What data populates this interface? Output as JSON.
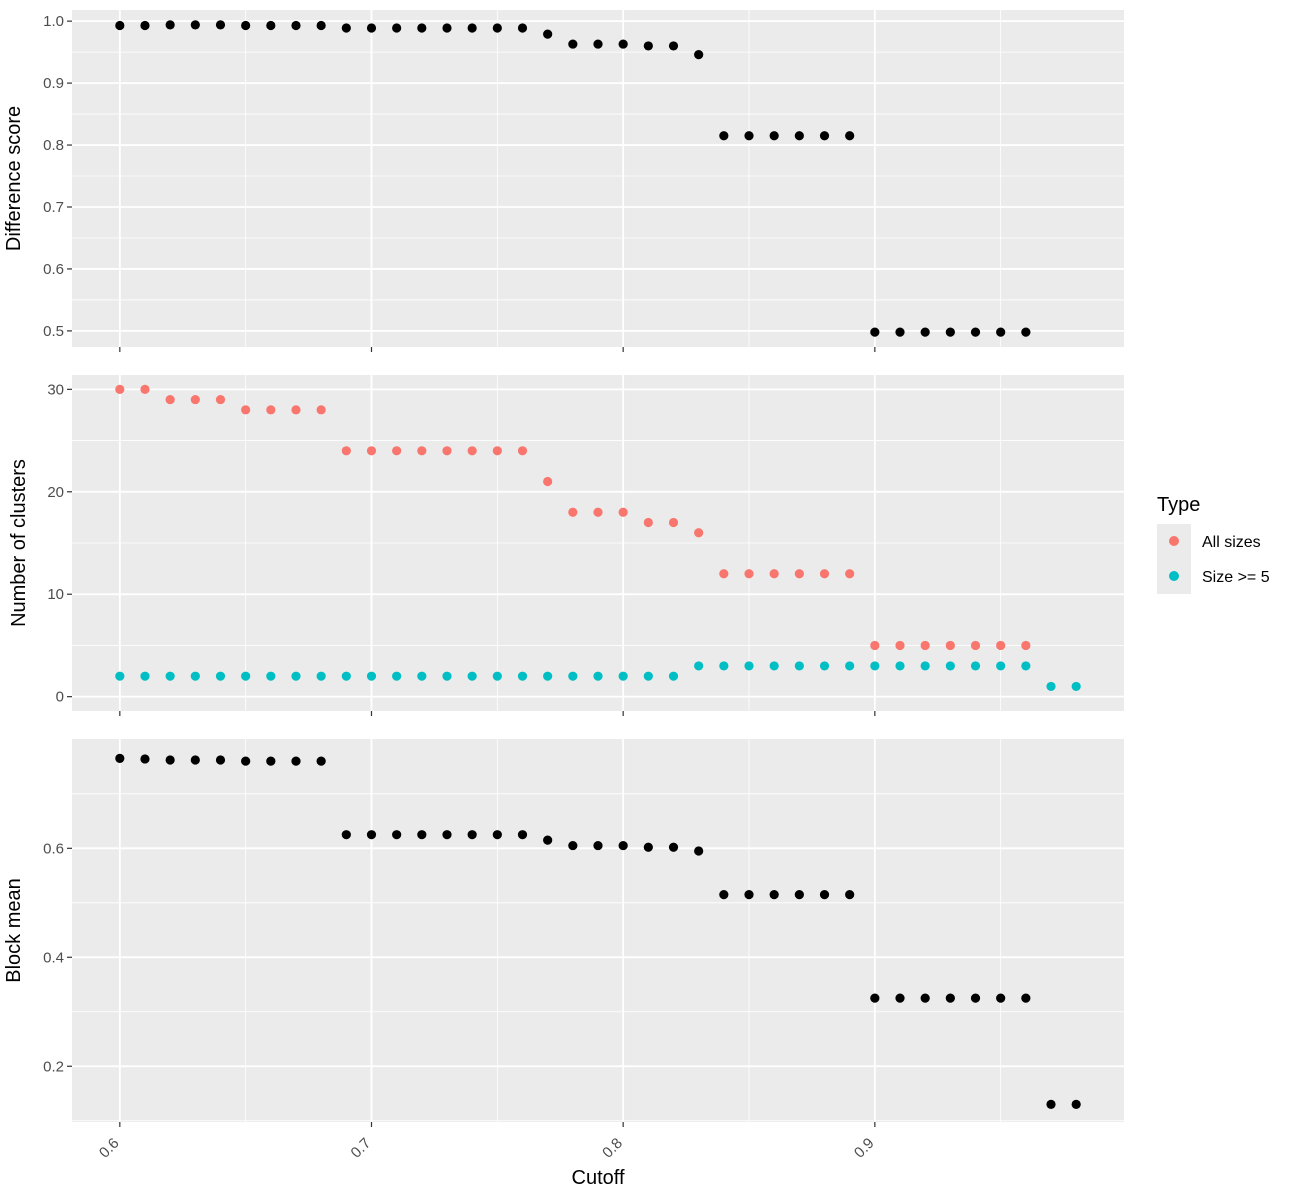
{
  "chart_data": {
    "type": "scatter",
    "xlabel": "Cutoff",
    "x_ticks": [
      0.6,
      0.7,
      0.8,
      0.9
    ],
    "x_tick_labels": [
      "0.6",
      "0.7",
      "0.8",
      "0.9"
    ],
    "xlim": [
      0.581,
      0.999
    ],
    "grid": true,
    "legend": {
      "title": "Type",
      "placement": "right",
      "entries": [
        {
          "name": "All sizes",
          "color": "#F8766D"
        },
        {
          "name": "Size >= 5",
          "color": "#00BFC4"
        }
      ]
    },
    "panels": [
      {
        "ylabel": "Difference score",
        "ylim": [
          0.474,
          1.018
        ],
        "y_ticks": [
          0.5,
          0.6,
          0.7,
          0.8,
          0.9,
          1.0
        ],
        "y_tick_labels": [
          "0.5",
          "0.6",
          "0.7",
          "0.8",
          "0.9",
          "1.0"
        ],
        "series": [
          {
            "color": "#000000",
            "x": [
              0.6,
              0.61,
              0.62,
              0.63,
              0.64,
              0.65,
              0.66,
              0.67,
              0.68,
              0.69,
              0.7,
              0.71,
              0.72,
              0.73,
              0.74,
              0.75,
              0.76,
              0.77,
              0.78,
              0.79,
              0.8,
              0.81,
              0.82,
              0.83,
              0.84,
              0.85,
              0.86,
              0.87,
              0.88,
              0.89,
              0.9,
              0.91,
              0.92,
              0.93,
              0.94,
              0.95,
              0.96
            ],
            "y": [
              0.993,
              0.993,
              0.994,
              0.994,
              0.994,
              0.993,
              0.993,
              0.993,
              0.993,
              0.989,
              0.989,
              0.989,
              0.989,
              0.989,
              0.989,
              0.989,
              0.989,
              0.979,
              0.963,
              0.963,
              0.963,
              0.96,
              0.96,
              0.946,
              0.815,
              0.815,
              0.815,
              0.815,
              0.815,
              0.815,
              0.498,
              0.498,
              0.498,
              0.498,
              0.498,
              0.498,
              0.498
            ]
          }
        ]
      },
      {
        "ylabel": "Number of clusters",
        "ylim": [
          -1.4,
          31.4
        ],
        "y_ticks": [
          0,
          10,
          20,
          30
        ],
        "y_tick_labels": [
          "0",
          "10",
          "20",
          "30"
        ],
        "series": [
          {
            "name": "All sizes",
            "color": "#F8766D",
            "x": [
              0.6,
              0.61,
              0.62,
              0.63,
              0.64,
              0.65,
              0.66,
              0.67,
              0.68,
              0.69,
              0.7,
              0.71,
              0.72,
              0.73,
              0.74,
              0.75,
              0.76,
              0.77,
              0.78,
              0.79,
              0.8,
              0.81,
              0.82,
              0.83,
              0.84,
              0.85,
              0.86,
              0.87,
              0.88,
              0.89,
              0.9,
              0.91,
              0.92,
              0.93,
              0.94,
              0.95,
              0.96
            ],
            "y": [
              30,
              30,
              29,
              29,
              29,
              28,
              28,
              28,
              28,
              24,
              24,
              24,
              24,
              24,
              24,
              24,
              24,
              21,
              18,
              18,
              18,
              17,
              17,
              16,
              12,
              12,
              12,
              12,
              12,
              12,
              5,
              5,
              5,
              5,
              5,
              5,
              5
            ]
          },
          {
            "name": "Size >= 5",
            "color": "#00BFC4",
            "x": [
              0.6,
              0.61,
              0.62,
              0.63,
              0.64,
              0.65,
              0.66,
              0.67,
              0.68,
              0.69,
              0.7,
              0.71,
              0.72,
              0.73,
              0.74,
              0.75,
              0.76,
              0.77,
              0.78,
              0.79,
              0.8,
              0.81,
              0.82,
              0.83,
              0.84,
              0.85,
              0.86,
              0.87,
              0.88,
              0.89,
              0.9,
              0.91,
              0.92,
              0.93,
              0.94,
              0.95,
              0.96,
              0.97,
              0.98
            ],
            "y": [
              2,
              2,
              2,
              2,
              2,
              2,
              2,
              2,
              2,
              2,
              2,
              2,
              2,
              2,
              2,
              2,
              2,
              2,
              2,
              2,
              2,
              2,
              2,
              3,
              3,
              3,
              3,
              3,
              3,
              3,
              3,
              3,
              3,
              3,
              3,
              3,
              3,
              1,
              1
            ]
          }
        ]
      },
      {
        "ylabel": "Block mean",
        "ylim": [
          0.0977,
          0.8006
        ],
        "y_ticks": [
          0.2,
          0.4,
          0.6
        ],
        "y_tick_labels": [
          "0.2",
          "0.4",
          "0.6"
        ],
        "series": [
          {
            "color": "#000000",
            "x": [
              0.6,
              0.61,
              0.62,
              0.63,
              0.64,
              0.65,
              0.66,
              0.67,
              0.68,
              0.69,
              0.7,
              0.71,
              0.72,
              0.73,
              0.74,
              0.75,
              0.76,
              0.77,
              0.78,
              0.79,
              0.8,
              0.81,
              0.82,
              0.83,
              0.84,
              0.85,
              0.86,
              0.87,
              0.88,
              0.89,
              0.9,
              0.91,
              0.92,
              0.93,
              0.94,
              0.95,
              0.96,
              0.97,
              0.98
            ],
            "y": [
              0.765,
              0.764,
              0.762,
              0.762,
              0.762,
              0.76,
              0.76,
              0.76,
              0.76,
              0.625,
              0.625,
              0.625,
              0.625,
              0.625,
              0.625,
              0.625,
              0.625,
              0.615,
              0.605,
              0.605,
              0.605,
              0.602,
              0.602,
              0.595,
              0.515,
              0.515,
              0.515,
              0.515,
              0.515,
              0.515,
              0.325,
              0.325,
              0.325,
              0.325,
              0.325,
              0.325,
              0.325,
              0.13,
              0.13
            ]
          }
        ]
      }
    ]
  }
}
